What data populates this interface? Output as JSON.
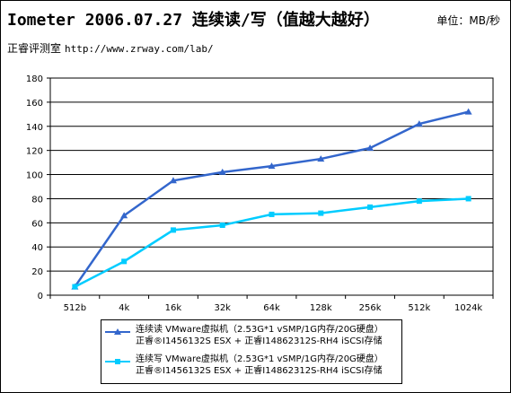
{
  "header": {
    "title": "Iometer 2006.07.27 连续读/写（值越大越好）",
    "unit": "单位：MB/秒",
    "lab": "正睿评测室",
    "url": "http://www.zrway.com/lab/"
  },
  "chart_data": {
    "type": "line",
    "title": "Iometer 2006.07.27 连续读/写（值越大越好）",
    "xlabel": "",
    "ylabel": "",
    "categories": [
      "512b",
      "4k",
      "16k",
      "32k",
      "64k",
      "128k",
      "256k",
      "512k",
      "1024k"
    ],
    "ylim": [
      0,
      180
    ],
    "yticks": [
      0,
      20,
      40,
      60,
      80,
      100,
      120,
      140,
      160,
      180
    ],
    "grid": true,
    "legend_position": "bottom",
    "series": [
      {
        "name": "连续读 VMware虚拟机（2.53G*1 vSMP/1G内存/20G硬盘）",
        "name_line2": "正睿®I1456132S ESX + 正睿I14862312S-RH4 iSCSI存储",
        "color": "#3366cc",
        "marker": "triangle",
        "values": [
          7,
          66,
          95,
          102,
          107,
          113,
          122,
          142,
          152
        ]
      },
      {
        "name": "连续写 VMware虚拟机（2.53G*1 vSMP/1G内存/20G硬盘）",
        "name_line2": "正睿®I1456132S ESX + 正睿I14862312S-RH4 iSCSI存储",
        "color": "#00ccff",
        "marker": "square",
        "values": [
          7,
          28,
          54,
          58,
          67,
          68,
          73,
          78,
          80
        ]
      }
    ]
  }
}
